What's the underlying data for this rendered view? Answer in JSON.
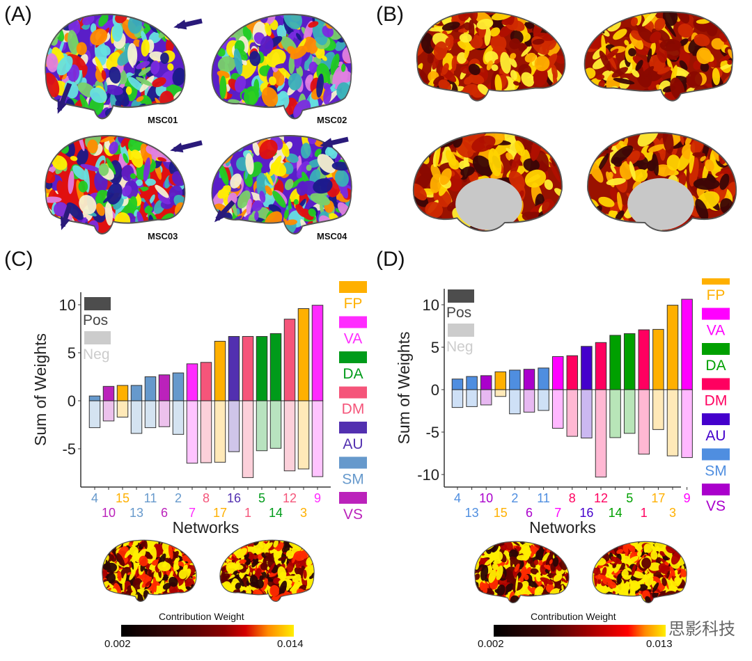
{
  "panels": {
    "a": "(A)",
    "b": "(B)",
    "c": "(C)",
    "d": "(D)"
  },
  "subjects": [
    "MSC01",
    "MSC02",
    "MSC03",
    "MSC04"
  ],
  "legend_pos_neg": {
    "pos": "Pos",
    "neg": "Neg",
    "pos_color": "#4d4d4d",
    "neg_color": "#cccccc"
  },
  "colorbar_c": {
    "title": "Contribution Weight",
    "min": "0.002",
    "max": "0.014"
  },
  "colorbar_d": {
    "title": "Contribution Weight",
    "min": "0.002",
    "max": "0.013"
  },
  "watermark": "思影科技",
  "chart_data": [
    {
      "type": "bar",
      "panel": "C",
      "xlabel": "Networks",
      "ylabel": "Sum of Weights",
      "ylim": [
        -9,
        10.5
      ],
      "yticks": [
        "10",
        "5",
        "0",
        "-5"
      ],
      "ytick_values": [
        10,
        5,
        0,
        -5
      ],
      "grid": false,
      "categories": [
        "4",
        "10",
        "15",
        "13",
        "11",
        "6",
        "2",
        "7",
        "8",
        "17",
        "16",
        "1",
        "5",
        "14",
        "12",
        "3",
        "9"
      ],
      "network_of_category": [
        "SM",
        "VS",
        "FP",
        "SM",
        "SM",
        "VS",
        "SM",
        "VA",
        "DM",
        "FP",
        "AU",
        "DM",
        "DA",
        "DA",
        "DM",
        "FP",
        "VA"
      ],
      "series": [
        {
          "name": "Pos",
          "values": [
            0.5,
            1.5,
            1.6,
            1.6,
            2.5,
            2.7,
            2.9,
            3.85,
            4.0,
            6.2,
            6.7,
            6.7,
            6.7,
            7.0,
            8.5,
            9.6,
            9.95
          ]
        },
        {
          "name": "Neg",
          "values": [
            -2.8,
            -2.1,
            -1.7,
            -3.4,
            -2.8,
            -2.7,
            -3.5,
            -6.5,
            -6.45,
            -6.4,
            -5.3,
            -8.0,
            -5.2,
            -4.95,
            -7.3,
            -7.1,
            -7.9
          ]
        }
      ],
      "network_legend": [
        {
          "label": "FP",
          "color": "#ffb000"
        },
        {
          "label": "VA",
          "color": "#ff2bff"
        },
        {
          "label": "DA",
          "color": "#009b1a"
        },
        {
          "label": "DM",
          "color": "#f5557a"
        },
        {
          "label": "AU",
          "color": "#5230b0"
        },
        {
          "label": "SM",
          "color": "#6699cc"
        },
        {
          "label": "VS",
          "color": "#bb22bb"
        }
      ],
      "legend_placement": "right"
    },
    {
      "type": "bar",
      "panel": "D",
      "xlabel": "Networks",
      "ylabel": "Sum of Weights",
      "ylim": [
        -11.5,
        11
      ],
      "yticks": [
        "10",
        "5",
        "0",
        "-5",
        "-10"
      ],
      "ytick_values": [
        10,
        5,
        0,
        -5,
        -10
      ],
      "grid": false,
      "categories": [
        "4",
        "13",
        "10",
        "15",
        "2",
        "6",
        "11",
        "7",
        "8",
        "16",
        "12",
        "14",
        "5",
        "1",
        "17",
        "3",
        "9"
      ],
      "network_of_category": [
        "SM",
        "SM",
        "VS",
        "FP",
        "SM",
        "VS",
        "SM",
        "VA",
        "DM",
        "AU",
        "DM",
        "DA",
        "DA",
        "DM",
        "FP",
        "FP",
        "VA"
      ],
      "series": [
        {
          "name": "Pos",
          "values": [
            1.25,
            1.55,
            1.65,
            2.1,
            2.3,
            2.4,
            2.55,
            3.9,
            4.0,
            5.1,
            5.55,
            6.4,
            6.6,
            7.05,
            7.1,
            9.95,
            10.65
          ]
        },
        {
          "name": "Neg",
          "values": [
            -2.1,
            -2.0,
            -1.8,
            -0.8,
            -2.85,
            -2.65,
            -2.45,
            -4.55,
            -5.5,
            -5.7,
            -10.3,
            -5.65,
            -5.15,
            -7.6,
            -4.7,
            -7.8,
            -8.0
          ]
        }
      ],
      "network_legend": [
        {
          "label": "FP",
          "color": "#ffb000"
        },
        {
          "label": "VA",
          "color": "#ff00ff"
        },
        {
          "label": "DA",
          "color": "#00a000"
        },
        {
          "label": "DM",
          "color": "#ff0060"
        },
        {
          "label": "AU",
          "color": "#4400cc"
        },
        {
          "label": "SM",
          "color": "#4f8ee0"
        },
        {
          "label": "VS",
          "color": "#aa00cc"
        }
      ],
      "legend_placement": "right"
    }
  ]
}
